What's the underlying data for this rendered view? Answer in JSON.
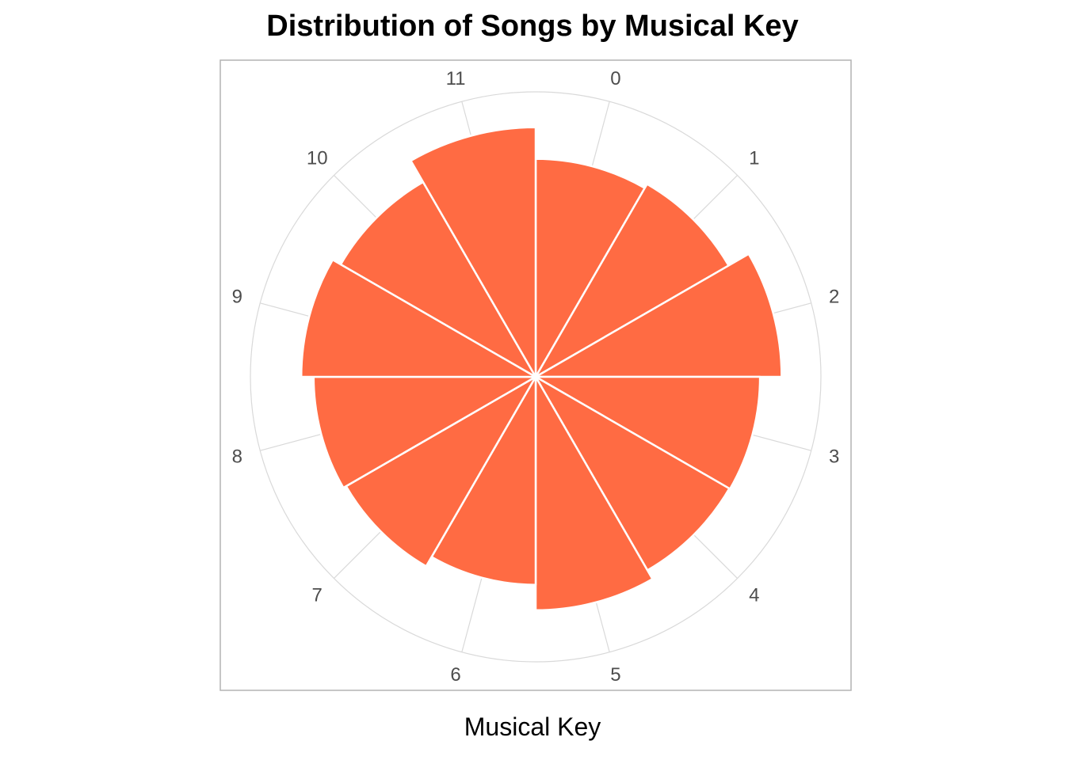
{
  "chart_data": {
    "type": "bar",
    "coordinate_system": "polar",
    "title": "Distribution of Songs by Musical Key",
    "xlabel": "Musical Key",
    "ylabel": "",
    "categories": [
      "0",
      "1",
      "2",
      "3",
      "4",
      "5",
      "6",
      "7",
      "8",
      "9",
      "10",
      "11"
    ],
    "values": [
      283,
      289,
      319,
      291,
      290,
      303,
      270,
      284,
      288,
      304,
      292,
      324
    ],
    "rlim": [
      0,
      370
    ],
    "grid": true,
    "legend": "none",
    "colors": {
      "bar_fill": "#FF6B43",
      "bar_edge": "#ffffff",
      "grid": "#d9d9d9",
      "panel_border": "#b3b3b3"
    }
  }
}
